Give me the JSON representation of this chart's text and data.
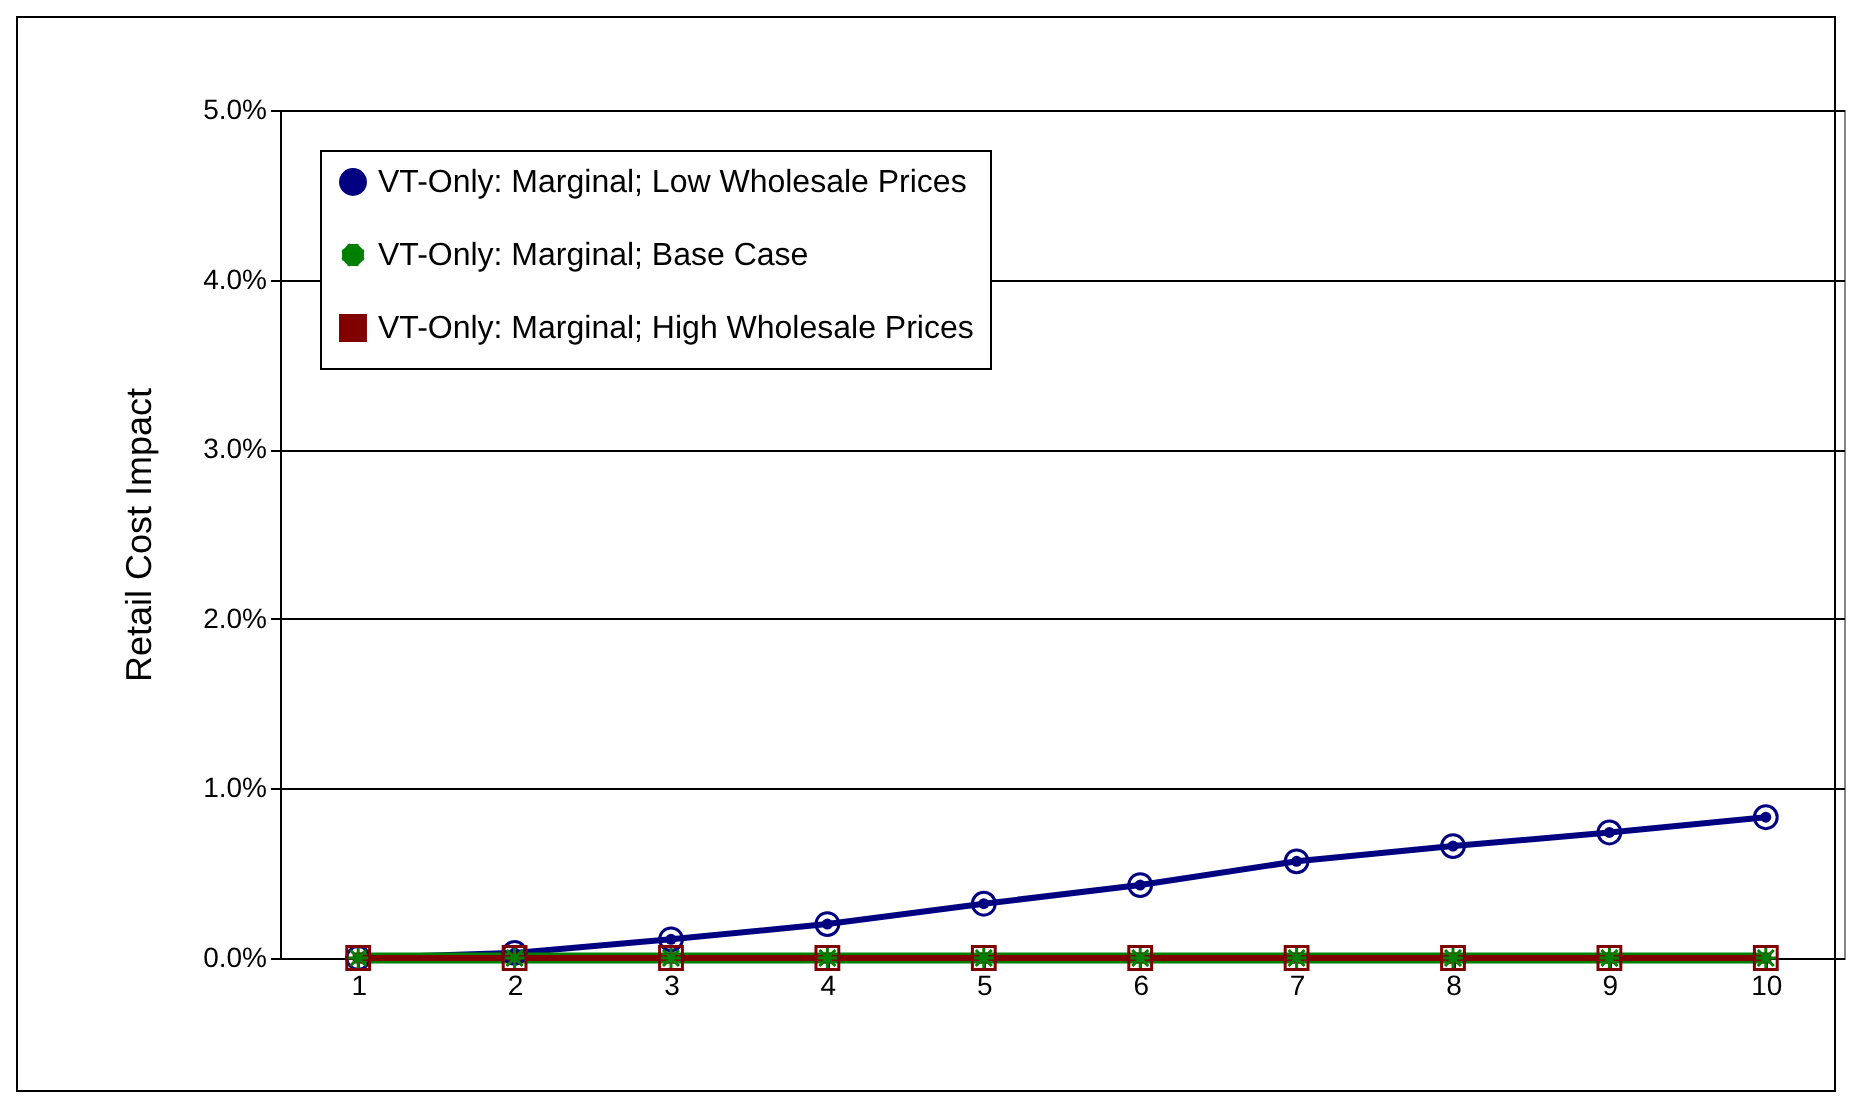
{
  "chart_data": {
    "type": "line",
    "ylabel": "Retail Cost Impact",
    "categories": [
      "1",
      "2",
      "3",
      "4",
      "5",
      "6",
      "7",
      "8",
      "9",
      "10"
    ],
    "series": [
      {
        "name": "VT-Only: Marginal; Low Wholesale Prices",
        "color": "#000080",
        "marker": "circle",
        "values": [
          0,
          0.03,
          0.11,
          0.2,
          0.32,
          0.43,
          0.57,
          0.66,
          0.74,
          0.83
        ]
      },
      {
        "name": "VT-Only: Marginal; Base Case",
        "color": "#008000",
        "marker": "cross",
        "values": [
          0,
          0,
          0,
          0,
          0,
          0,
          0,
          0,
          0,
          0
        ]
      },
      {
        "name": "VT-Only: Marginal; High Wholesale Prices",
        "color": "#800000",
        "marker": "square",
        "values": [
          0,
          0,
          0,
          0,
          0,
          0,
          0,
          0,
          0,
          0
        ]
      }
    ],
    "ylim": [
      0,
      5
    ],
    "yticks": [
      {
        "value": 0,
        "label": "0.0%"
      },
      {
        "value": 1,
        "label": "1.0%"
      },
      {
        "value": 2,
        "label": "2.0%"
      },
      {
        "value": 3,
        "label": "3.0%"
      },
      {
        "value": 4,
        "label": "4.0%"
      },
      {
        "value": 5,
        "label": "5.0%"
      }
    ],
    "grid": "y",
    "legend": "top left",
    "line_style": "solid"
  }
}
